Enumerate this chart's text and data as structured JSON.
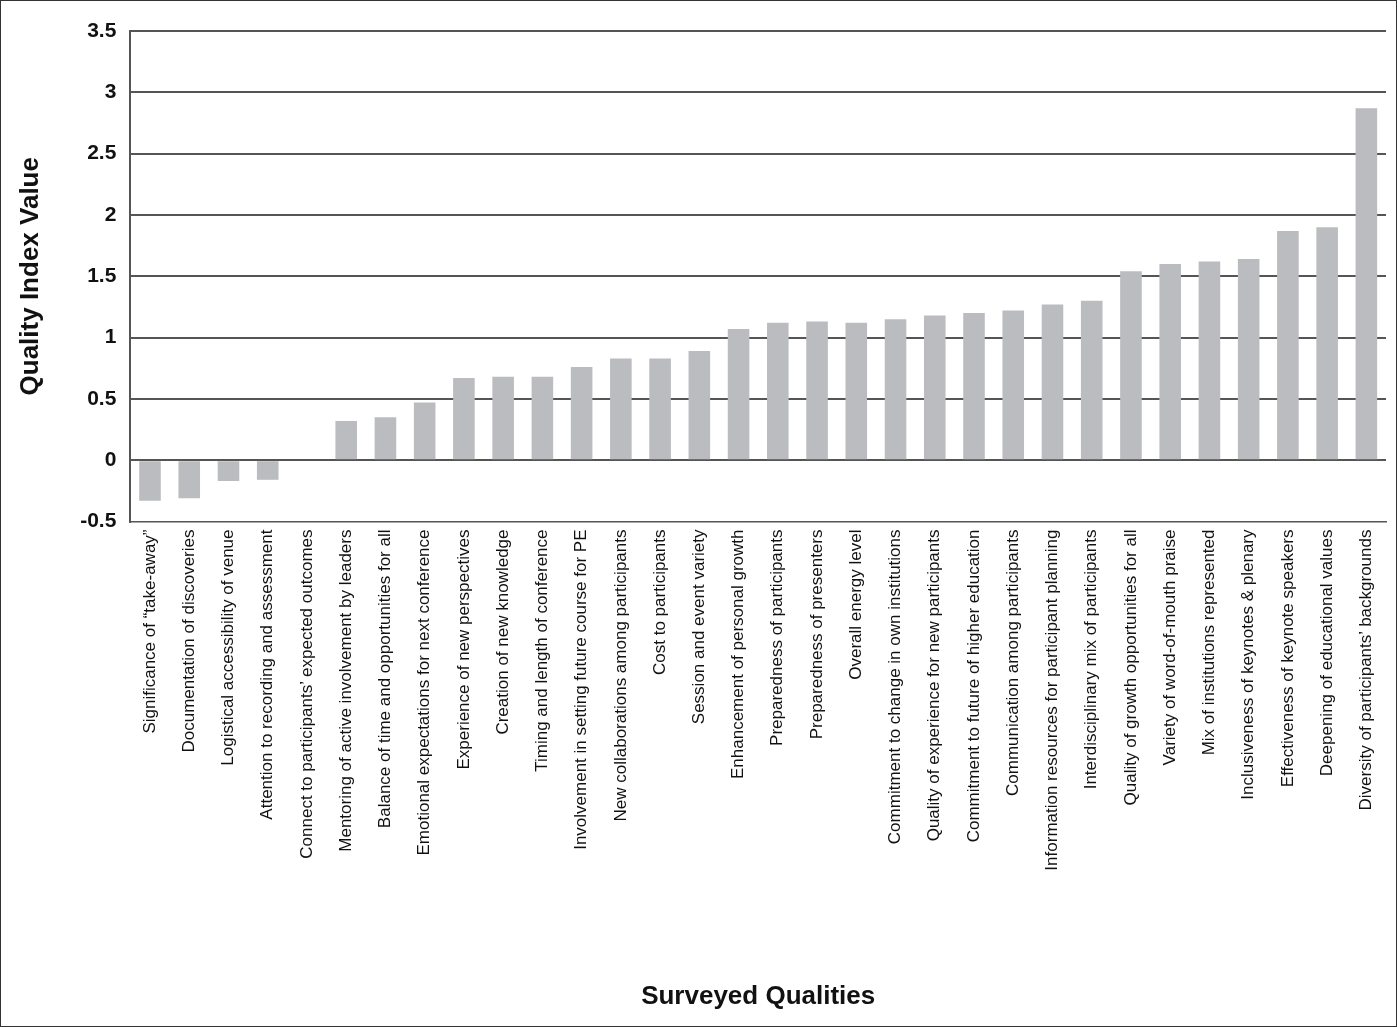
{
  "chart_data": {
    "type": "bar",
    "xlabel": "Surveyed Qualities",
    "ylabel": "Quality Index Value",
    "categories": [
      "Significance of “take-away”",
      "Documentation of discoveries",
      "Logistical accessibility of venue",
      "Attention to recording and assessment",
      "Connect to participants’ expected outcomes",
      "Mentoring of active involvement by leaders",
      "Balance of time and opportunities for all",
      "Emotional expectations for next conference",
      "Experience of new perspectives",
      "Creation of new knowledge",
      "Timing and length of conference",
      "Involvement in setting future course for PE",
      "New collaborations among participants",
      "Cost to participants",
      "Session and event variety",
      "Enhancement of personal growth",
      "Preparedness of participants",
      "Preparedness of presenters",
      "Overall energy level",
      "Commitment to change in own institutions",
      "Quality of experience for new participants",
      "Commitment to future of higher education",
      "Communication among participants",
      "Information resources for participant planning",
      "Interdisciplinary mix of participants",
      "Quality of growth opportunities for all",
      "Variety of word-of-mouth praise",
      "Mix of institutions represented",
      "Inclusiveness of keynotes & plenary",
      "Effectiveness of keynote speakers",
      "Deepening of educational values",
      "Diversity of participants’ backgrounds"
    ],
    "values": [
      -0.33,
      -0.31,
      -0.17,
      -0.16,
      0,
      0.32,
      0.35,
      0.47,
      0.67,
      0.68,
      0.68,
      0.76,
      0.83,
      0.83,
      0.89,
      1.07,
      1.12,
      1.13,
      1.12,
      1.15,
      1.18,
      1.2,
      1.22,
      1.27,
      1.3,
      1.54,
      1.6,
      1.62,
      1.64,
      1.87,
      1.9,
      2.87
    ],
    "color": "#bbbcc0",
    "ylim": [
      -0.5,
      3.5
    ],
    "yticks": [
      {
        "value": -0.5,
        "label": "-0.5"
      },
      0,
      {
        "value": 0.5,
        "label": "0.5"
      },
      1,
      {
        "value": 1.5,
        "label": "1.5"
      },
      2,
      {
        "value": 2.5,
        "label": "2.5"
      },
      3,
      {
        "value": 3.5,
        "label": "3.5"
      }
    ],
    "grid": "y",
    "legend": false
  }
}
